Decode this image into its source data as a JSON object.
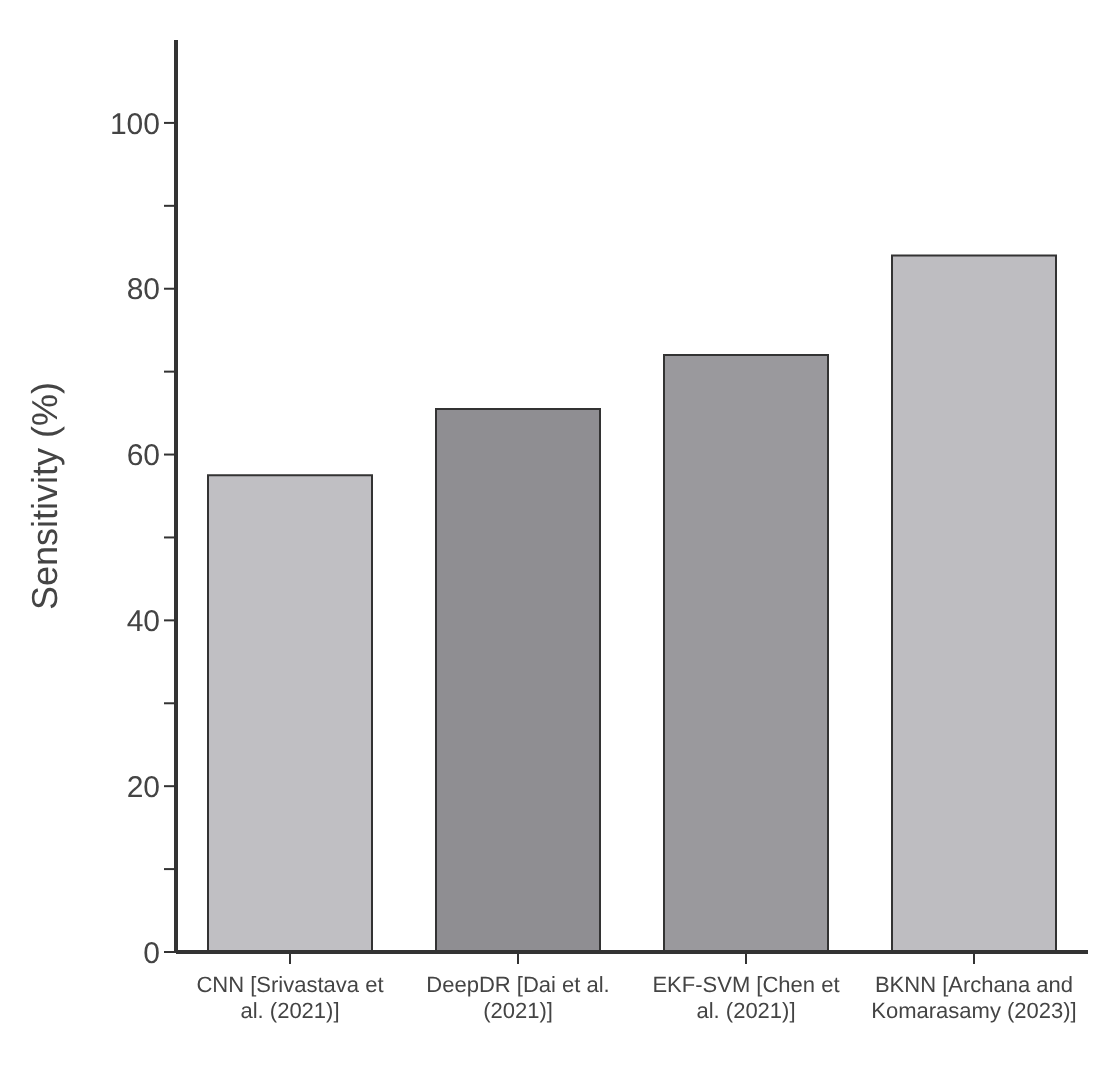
{
  "chart_data": {
    "type": "bar",
    "ylabel": "Sensitivity (%)",
    "categories": [
      "CNN [Srivastava et al. (2021)]",
      "DeepDR [Dai et al. (2021)]",
      "EKF-SVM [Chen et al. (2021)]",
      "BKNN [Archana and Komarasamy (2023)]"
    ],
    "values": [
      57.5,
      65.5,
      72,
      84
    ],
    "colors": [
      "#c0bfc3",
      "#8f8e92",
      "#9a999d",
      "#bebdc1"
    ],
    "ylim": [
      0,
      110
    ],
    "yticks": [
      0,
      {
        "value": 10,
        "label": null
      },
      20,
      {
        "value": 30,
        "label": null
      },
      40,
      {
        "value": 50,
        "label": null
      },
      60,
      {
        "value": 70,
        "label": null
      },
      80,
      {
        "value": 90,
        "label": null
      },
      100
    ],
    "grid": false
  }
}
